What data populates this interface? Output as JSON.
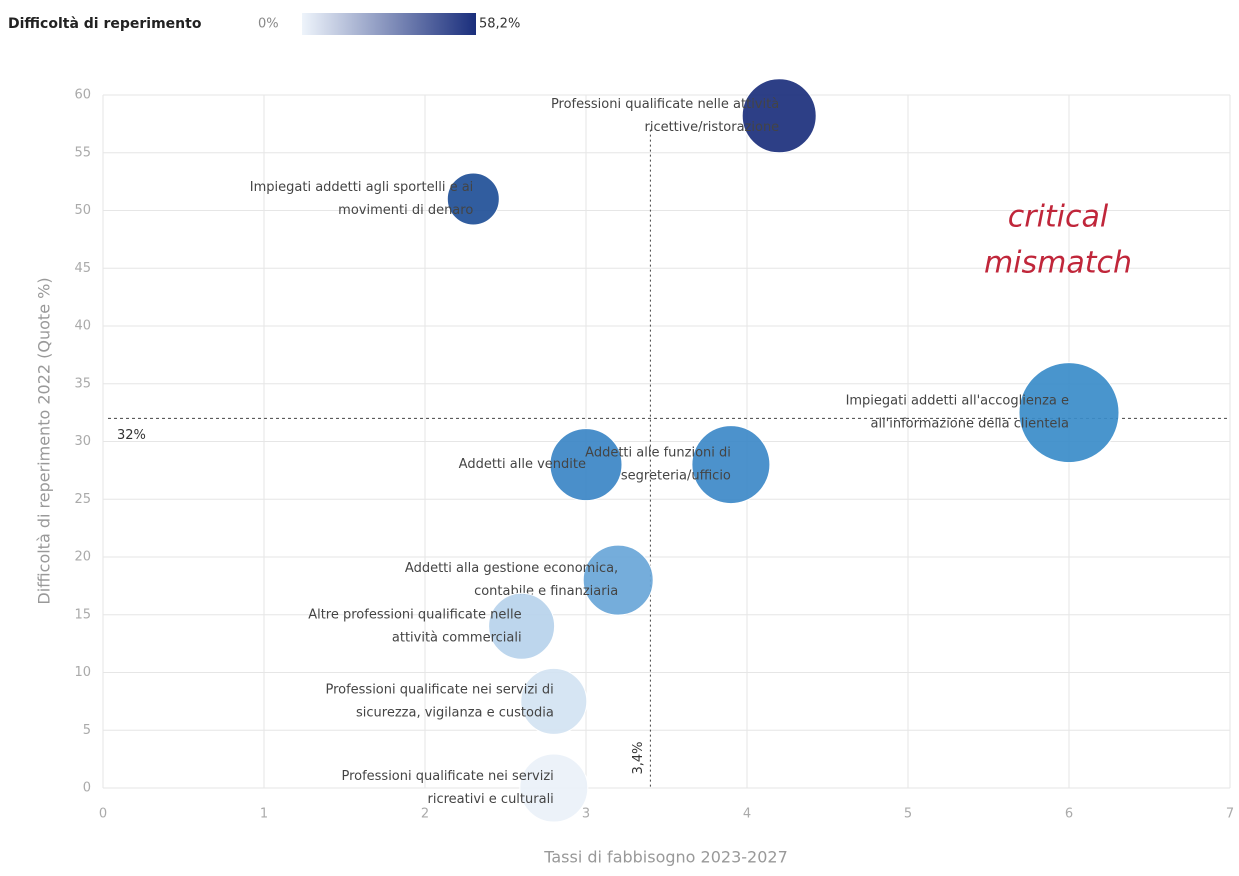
{
  "chart_data": {
    "type": "bubble",
    "x_label": "Tassi di fabbisogno 2023-2027",
    "y_label": "Difficoltà di reperimento 2022 (Quote %)",
    "xlim": [
      0,
      7
    ],
    "xticks": [
      0,
      1,
      2,
      3,
      4,
      5,
      6,
      7
    ],
    "ylim": [
      0,
      60
    ],
    "yticks": [
      0,
      5,
      10,
      15,
      20,
      25,
      30,
      35,
      40,
      45,
      50,
      55,
      60
    ],
    "grid": true,
    "colorbar": {
      "title": "Difficoltà di reperimento",
      "min": {
        "value": 0,
        "label": "0%"
      },
      "max": {
        "value": 58.2,
        "label": "58,2%"
      },
      "colors": [
        "#eef4fb",
        "#1a2e7c"
      ]
    },
    "hline": {
      "value": 32,
      "label": "32%"
    },
    "vline": {
      "value": 3.4,
      "label": "3,4%"
    },
    "annotation": [
      "critical",
      "mismatch"
    ],
    "points": [
      {
        "label": [
          "Professioni qualificate nelle attività",
          "ricettive/ristorazione"
        ],
        "x": 4.2,
        "y": 58.2,
        "size": 37,
        "color": "#1b2f7c"
      },
      {
        "label": [
          "Impiegati addetti agli sportelli e ai",
          "movimenti di denaro"
        ],
        "x": 2.3,
        "y": 51,
        "size": 26,
        "color": "#1f4f97"
      },
      {
        "label": [
          "Impiegati addetti all'accoglienza e",
          "all'informazione della clientela"
        ],
        "x": 6.0,
        "y": 32.5,
        "size": 50,
        "color": "#3a8cc9"
      },
      {
        "label": [
          "Addetti alle vendite"
        ],
        "x": 3.0,
        "y": 28,
        "size": 36,
        "color": "#3b86c6"
      },
      {
        "label": [
          "Addetti alle funzioni di",
          "segreteria/ufficio"
        ],
        "x": 3.9,
        "y": 28,
        "size": 39,
        "color": "#3d89c8"
      },
      {
        "label": [
          "Addetti alla gestione economica,",
          "contabile e finanziaria"
        ],
        "x": 3.2,
        "y": 18,
        "size": 35,
        "color": "#69a6d8"
      },
      {
        "label": [
          "Altre professioni qualificate nelle",
          "attività commerciali"
        ],
        "x": 2.6,
        "y": 14,
        "size": 33,
        "color": "#b7d3ec"
      },
      {
        "label": [
          "Professioni qualificate nei servizi di",
          "sicurezza, vigilanza e custodia"
        ],
        "x": 2.8,
        "y": 7.5,
        "size": 33,
        "color": "#d2e3f2"
      },
      {
        "label": [
          "Professioni qualificate nei servizi",
          "ricreativi e culturali"
        ],
        "x": 2.8,
        "y": 0,
        "size": 34,
        "color": "#eaf1f9"
      }
    ]
  }
}
